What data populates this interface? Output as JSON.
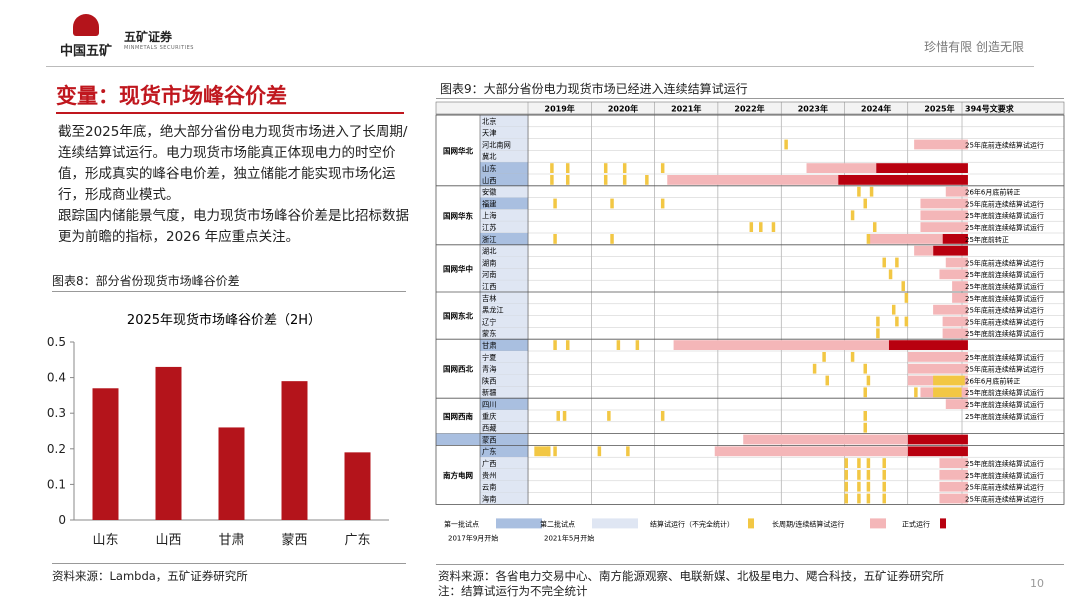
{
  "header": {
    "logo_primary": "中国五矿",
    "logo_secondary": "五矿证券",
    "logo_secondary_en": "MINMETALS SECURITIES",
    "slogan": "珍惜有限 创造无限"
  },
  "page_title": "变量：现货市场峰谷价差",
  "paragraphs": [
    "截至2025年底，绝大部分省份电力现货市场进入了长周期/连续结算试运行。电力现货市场能真正体现电力的时空价值，形成真实的峰谷电价差，独立储能才能实现市场化运行，形成商业模式。",
    "跟踪国内储能景气度，电力现货市场峰谷价差是比招标数据更为前瞻的指标，2026 年应重点关注。"
  ],
  "fig8_title": "图表8：部分省份现货市场峰谷价差",
  "fig8_source": "资料来源：Lambda，五矿证券研究所",
  "fig9_title": "图表9：大部分省份电力现货市场已经进入连续结算试运行",
  "fig9_source": "资料来源：各省电力交易中心、南方能源观察、电联新媒、北极星电力、飔合科技，五矿证券研究所",
  "fig9_note": "注：结算试运行为不完全统计",
  "page_number": "10",
  "chart_data": [
    {
      "type": "bar",
      "title": "2025年现货市场峰谷价差（2H）",
      "categories": [
        "山东",
        "山西",
        "甘肃",
        "蒙西",
        "广东"
      ],
      "values": [
        0.37,
        0.43,
        0.26,
        0.39,
        0.19
      ],
      "ylim": [
        0,
        0.5
      ],
      "yticks": [
        "0",
        "0.1",
        "0.2",
        "0.3",
        "0.4",
        "0.5"
      ],
      "xlabel": "",
      "ylabel": "",
      "grid": false,
      "color": "#b4141b"
    },
    {
      "type": "table",
      "years": [
        "2019年",
        "2020年",
        "2021年",
        "2022年",
        "2023年",
        "2024年",
        "2025年"
      ],
      "requirement_header": "394号文要求",
      "groups": [
        {
          "name": "国网华北",
          "provinces": [
            "北京",
            "天津",
            "河北南网",
            "冀北",
            "山东",
            "山西"
          ]
        },
        {
          "name": "国网华东",
          "provinces": [
            "安徽",
            "福建",
            "上海",
            "江苏",
            "浙江"
          ]
        },
        {
          "name": "国网华中",
          "provinces": [
            "湖北",
            "湖南",
            "河南",
            "江西"
          ]
        },
        {
          "name": "国网东北",
          "provinces": [
            "吉林",
            "黑龙江",
            "辽宁",
            "蒙东"
          ]
        },
        {
          "name": "国网西北",
          "provinces": [
            "甘肃",
            "宁夏",
            "青海",
            "陕西",
            "新疆"
          ]
        },
        {
          "name": "国网西南",
          "provinces": [
            "四川",
            "重庆",
            "西藏"
          ]
        },
        {
          "name": "",
          "provinces": [
            "蒙西"
          ]
        },
        {
          "name": "南方电网",
          "provinces": [
            "广东",
            "广西",
            "贵州",
            "云南",
            "海南"
          ]
        }
      ],
      "requirements": [
        "",
        "",
        "25年底前连续结算试运行",
        "",
        "",
        "",
        "26年6月底前转正",
        "25年底前连续结算试运行",
        "25年底前连续结算试运行",
        "25年底前连续结算试运行",
        "25年底前转正",
        "",
        "25年底前连续结算试运行",
        "25年底前连续结算试运行",
        "25年底前连续结算试运行",
        "25年底前连续结算试运行",
        "25年底前连续结算试运行",
        "25年底前连续结算试运行",
        "25年底前连续结算试运行",
        "",
        "25年底前连续结算试运行",
        "25年底前连续结算试运行",
        "26年6月底前转正",
        "25年底前连续结算试运行",
        "25年底前连续结算试运行",
        "25年底前连续结算试运行",
        "",
        "",
        "",
        "25年底前连续结算试运行",
        "25年底前连续结算试运行",
        "25年底前连续结算试运行",
        "25年底前连续结算试运行"
      ],
      "legend": [
        {
          "label": "第一批试点",
          "sub": "2017年9月开始",
          "color": "#a9bfe0"
        },
        {
          "label": "第二批试点",
          "sub": "2021年5月开始",
          "color": "#dfe6f3"
        },
        {
          "label": "结算试运行（不完全统计）",
          "sub": "",
          "color": "#f2c744"
        },
        {
          "label": "长周期/连续结算试运行",
          "sub": "",
          "color": "#f4b6b8"
        },
        {
          "label": "正式运行",
          "sub": "",
          "color": "#b8000f"
        }
      ]
    }
  ]
}
